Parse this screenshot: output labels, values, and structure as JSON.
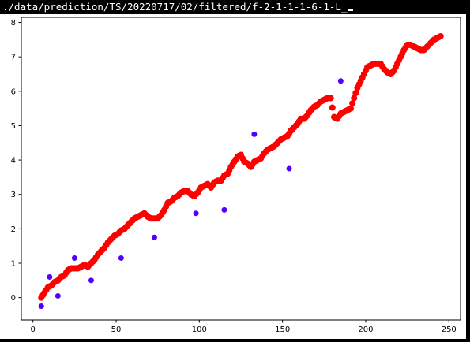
{
  "window": {
    "title": "./data/prediction/TS/20220717/02/filtered/f-2-1-1-1-6-1-L_"
  },
  "colors": {
    "background": "#ffffff",
    "prediction": "#ff0000",
    "actual": "#5500ff",
    "axis": "#000000"
  },
  "chart_data": {
    "type": "scatter",
    "title": "",
    "xlabel": "",
    "ylabel": "",
    "xlim": [
      -7,
      257
    ],
    "ylim": [
      -0.65,
      8.15
    ],
    "xticks": [
      0,
      50,
      100,
      150,
      200,
      250
    ],
    "yticks": [
      0,
      1,
      2,
      3,
      4,
      5,
      6,
      7,
      8
    ],
    "grid": false,
    "legend": "none",
    "series": [
      {
        "color": "#ff0000",
        "dense": true,
        "x": [
          5,
          7,
          9,
          11,
          13,
          15,
          17,
          19,
          21,
          23,
          25,
          27,
          29,
          31,
          33,
          35,
          37,
          39,
          41,
          43,
          45,
          47,
          49,
          51,
          53,
          55,
          57,
          59,
          61,
          63,
          65,
          67,
          69,
          71,
          73,
          75,
          77,
          79,
          81,
          83,
          85,
          87,
          89,
          91,
          93,
          95,
          97,
          99,
          101,
          103,
          105,
          107,
          109,
          111,
          113,
          115,
          117,
          119,
          121,
          123,
          125,
          127,
          129,
          131,
          133,
          135,
          137,
          139,
          141,
          143,
          145,
          147,
          149,
          151,
          153,
          155,
          157,
          159,
          161,
          163,
          165,
          167,
          169,
          171,
          173,
          175,
          177,
          179,
          181,
          183,
          185,
          187,
          189,
          191,
          193,
          195,
          197,
          199,
          201,
          203,
          205,
          207,
          209,
          211,
          213,
          215,
          217,
          219,
          221,
          223,
          225,
          227,
          229,
          231,
          233,
          235,
          237,
          239,
          241,
          243,
          245
        ],
        "y": [
          0.0,
          0.15,
          0.3,
          0.35,
          0.45,
          0.5,
          0.6,
          0.65,
          0.8,
          0.85,
          0.85,
          0.85,
          0.9,
          0.95,
          0.9,
          1.0,
          1.1,
          1.25,
          1.35,
          1.45,
          1.6,
          1.7,
          1.8,
          1.85,
          1.95,
          2.0,
          2.1,
          2.2,
          2.3,
          2.35,
          2.4,
          2.45,
          2.35,
          2.3,
          2.3,
          2.3,
          2.4,
          2.55,
          2.75,
          2.8,
          2.9,
          2.95,
          3.05,
          3.1,
          3.1,
          3.0,
          2.95,
          3.05,
          3.2,
          3.25,
          3.3,
          3.2,
          3.35,
          3.4,
          3.4,
          3.55,
          3.6,
          3.8,
          3.95,
          4.1,
          4.15,
          3.95,
          3.9,
          3.8,
          3.95,
          4.0,
          4.05,
          4.2,
          4.3,
          4.35,
          4.4,
          4.5,
          4.6,
          4.65,
          4.7,
          4.85,
          4.95,
          5.05,
          5.2,
          5.2,
          5.3,
          5.45,
          5.55,
          5.6,
          5.7,
          5.75,
          5.8,
          5.8,
          5.25,
          5.2,
          5.35,
          5.4,
          5.45,
          5.5,
          5.8,
          6.1,
          6.3,
          6.5,
          6.7,
          6.75,
          6.8,
          6.8,
          6.8,
          6.65,
          6.55,
          6.5,
          6.6,
          6.8,
          7.0,
          7.2,
          7.35,
          7.35,
          7.3,
          7.25,
          7.2,
          7.2,
          7.3,
          7.4,
          7.5,
          7.55,
          7.6
        ]
      },
      {
        "color": "#5500ff",
        "dense": false,
        "x": [
          5,
          10,
          15,
          25,
          35,
          53,
          73,
          98,
          115,
          133,
          154,
          185
        ],
        "y": [
          -0.25,
          0.6,
          0.05,
          1.15,
          0.5,
          1.15,
          1.75,
          2.45,
          2.55,
          4.75,
          3.75,
          6.3
        ]
      }
    ]
  }
}
